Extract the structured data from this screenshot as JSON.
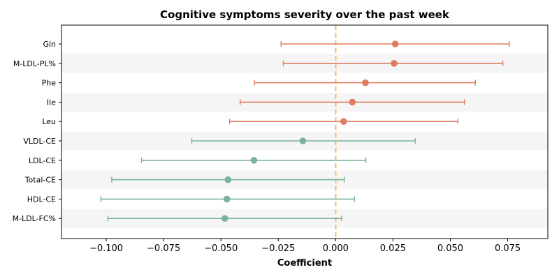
{
  "chart_data": {
    "type": "forest",
    "title": "Cognitive symptoms severity over the past week",
    "xlabel": "Coefficient",
    "ylabel": "",
    "xlim": [
      -0.1195,
      0.0925
    ],
    "xticks": [
      -0.1,
      -0.075,
      -0.05,
      -0.025,
      0.0,
      0.025,
      0.05,
      0.075
    ],
    "xtick_labels": [
      "−0.100",
      "−0.075",
      "−0.050",
      "−0.025",
      "0.000",
      "0.025",
      "0.050",
      "0.075"
    ],
    "reference_line": 0.0,
    "reference_color": "#f6c785",
    "band_color": "#f5f5f5",
    "colors": {
      "positive": "#e07c5f",
      "negative": "#7ab49a"
    },
    "categories": [
      "Gln",
      "M-LDL-PL%",
      "Phe",
      "Ile",
      "Leu",
      "VLDL-CE",
      "LDL-CE",
      "Total-CE",
      "HDL-CE",
      "M-LDL-FC%"
    ],
    "estimates": [
      0.026,
      0.0255,
      0.013,
      0.0073,
      0.0035,
      -0.0143,
      -0.0356,
      -0.0469,
      -0.0474,
      -0.0483
    ],
    "ci_lower": [
      -0.0238,
      -0.0228,
      -0.0354,
      -0.0416,
      -0.0462,
      -0.0627,
      -0.0846,
      -0.0976,
      -0.1024,
      -0.0993
    ],
    "ci_upper": [
      0.0757,
      0.0729,
      0.0609,
      0.0562,
      0.0533,
      0.0347,
      0.0132,
      0.0038,
      0.0082,
      0.0026
    ],
    "direction": [
      "positive",
      "positive",
      "positive",
      "positive",
      "positive",
      "negative",
      "negative",
      "negative",
      "negative",
      "negative"
    ]
  }
}
